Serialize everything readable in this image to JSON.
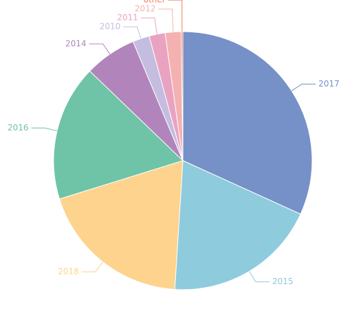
{
  "chart_data": {
    "type": "pie",
    "categories": [
      "2017",
      "2015",
      "2018",
      "2016",
      "2014",
      "2010",
      "2011",
      "2012",
      "other"
    ],
    "values": [
      31.8,
      19.2,
      19.2,
      17,
      6.5,
      2.1,
      2,
      2,
      0.2
    ],
    "colors": [
      "#7690c8",
      "#8ecbdd",
      "#fdd38e",
      "#6fc3a6",
      "#b185bb",
      "#c4bde0",
      "#e9a3c1",
      "#f4b1b1",
      "#f07a5a"
    ]
  }
}
